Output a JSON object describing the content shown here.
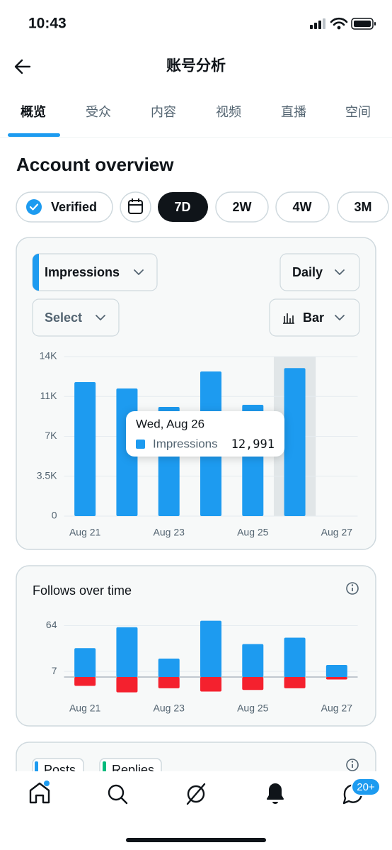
{
  "status_bar": {
    "time": "10:43"
  },
  "header": {
    "title": "账号分析"
  },
  "tabs": [
    "概览",
    "受众",
    "内容",
    "视频",
    "直播",
    "空间"
  ],
  "section_title": "Account overview",
  "filters": {
    "verified": "Verified",
    "ranges": [
      "7D",
      "2W",
      "4W",
      "3M"
    ]
  },
  "controls": {
    "interval": "Daily",
    "select": "Select",
    "view": "Bar"
  },
  "chart_data": [
    {
      "type": "bar",
      "categories": [
        "Aug 21",
        null,
        "Aug 23",
        null,
        "Aug 25",
        null,
        "Aug 27"
      ],
      "series": [
        {
          "name": "Impressions",
          "color": "#1d9bf0",
          "values": [
            11760,
            11200,
            9580,
            12690,
            9770,
            12991,
            null
          ]
        }
      ],
      "ylim": [
        0,
        14000
      ],
      "yticks": [
        0,
        {
          "value": 3500,
          "label": "3.5K"
        },
        {
          "value": 7000,
          "label": "7K"
        },
        {
          "value": 10500,
          "label": "11K"
        },
        {
          "value": 14000,
          "label": "14K"
        }
      ],
      "grid": true,
      "tooltip": {
        "index": 5,
        "title": "Wed, Aug 26",
        "label": "12,991"
      }
    },
    {
      "type": "bar",
      "title": "Follows over time",
      "categories": [
        "Aug 21",
        null,
        "Aug 23",
        null,
        "Aug 25",
        null,
        "Aug 27"
      ],
      "series": [
        {
          "color": "#1d9bf0",
          "values": [
            36,
            62,
            23,
            70,
            41,
            49,
            15
          ]
        },
        {
          "color": "#f4212e",
          "values": [
            -11,
            -19,
            -14,
            -18,
            -16,
            -14,
            -3
          ]
        }
      ],
      "ylim": [
        -22,
        75
      ],
      "yticks": [
        7,
        64
      ],
      "grid": true
    }
  ],
  "posts_card": {
    "chips": [
      "Posts",
      "Replies"
    ]
  },
  "nav": {
    "badge": "20+"
  }
}
